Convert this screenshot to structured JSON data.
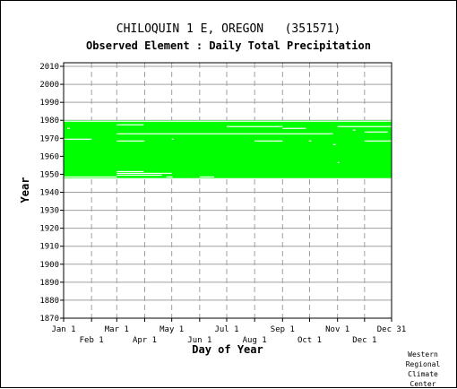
{
  "chart_data": {
    "type": "heatmap",
    "title": "CHILOQUIN 1 E, OREGON   (351571)",
    "subtitle": "Observed Element : Daily Total Precipitation",
    "xlabel": "Day of Year",
    "ylabel": "Year",
    "xlim": [
      1,
      365
    ],
    "ylim": [
      1870,
      2012
    ],
    "x_ticks_row1": [
      {
        "label": "Jan 1",
        "day": 1
      },
      {
        "label": "Mar 1",
        "day": 60
      },
      {
        "label": "May 1",
        "day": 121
      },
      {
        "label": "Jul 1",
        "day": 182
      },
      {
        "label": "Sep 1",
        "day": 244
      },
      {
        "label": "Nov 1",
        "day": 305
      },
      {
        "label": "Dec 31",
        "day": 365
      }
    ],
    "x_ticks_row2": [
      {
        "label": "Feb 1",
        "day": 32
      },
      {
        "label": "Apr 1",
        "day": 91
      },
      {
        "label": "Jun 1",
        "day": 152
      },
      {
        "label": "Aug 1",
        "day": 213
      },
      {
        "label": "Oct 1",
        "day": 274
      },
      {
        "label": "Dec 1",
        "day": 335
      }
    ],
    "y_ticks": [
      1870,
      1880,
      1890,
      1900,
      1910,
      1920,
      1930,
      1940,
      1950,
      1960,
      1970,
      1980,
      1990,
      2000,
      2010
    ],
    "grid": true,
    "data_color": "#00ff00",
    "coverage_years": [
      1948,
      1979
    ],
    "missing_segments": [
      {
        "year": 1979,
        "day_start": 1,
        "day_end": 365
      },
      {
        "year": 1977,
        "day_start": 60,
        "day_end": 90
      },
      {
        "year": 1976,
        "day_start": 182,
        "day_end": 244
      },
      {
        "year": 1976,
        "day_start": 305,
        "day_end": 365
      },
      {
        "year": 1975,
        "day_start": 244,
        "day_end": 270
      },
      {
        "year": 1975,
        "day_start": 5,
        "day_end": 8
      },
      {
        "year": 1974,
        "day_start": 322,
        "day_end": 325
      },
      {
        "year": 1973,
        "day_start": 335,
        "day_end": 361
      },
      {
        "year": 1972,
        "day_start": 60,
        "day_end": 300
      },
      {
        "year": 1969,
        "day_start": 1,
        "day_end": 32
      },
      {
        "year": 1969,
        "day_start": 121,
        "day_end": 123
      },
      {
        "year": 1968,
        "day_start": 60,
        "day_end": 91
      },
      {
        "year": 1968,
        "day_start": 213,
        "day_end": 244
      },
      {
        "year": 1968,
        "day_start": 335,
        "day_end": 365
      },
      {
        "year": 1968,
        "day_start": 273,
        "day_end": 276
      },
      {
        "year": 1966,
        "day_start": 300,
        "day_end": 303
      },
      {
        "year": 1956,
        "day_start": 305,
        "day_end": 307
      },
      {
        "year": 1951,
        "day_start": 60,
        "day_end": 90
      },
      {
        "year": 1950,
        "day_start": 60,
        "day_end": 121
      },
      {
        "year": 1949,
        "day_start": 60,
        "day_end": 110
      },
      {
        "year": 1948,
        "day_start": 1,
        "day_end": 60
      },
      {
        "year": 1948,
        "day_start": 115,
        "day_end": 122
      },
      {
        "year": 1948,
        "day_start": 152,
        "day_end": 168
      }
    ]
  },
  "credit": [
    "Western",
    "Regional",
    "Climate",
    "Center"
  ]
}
